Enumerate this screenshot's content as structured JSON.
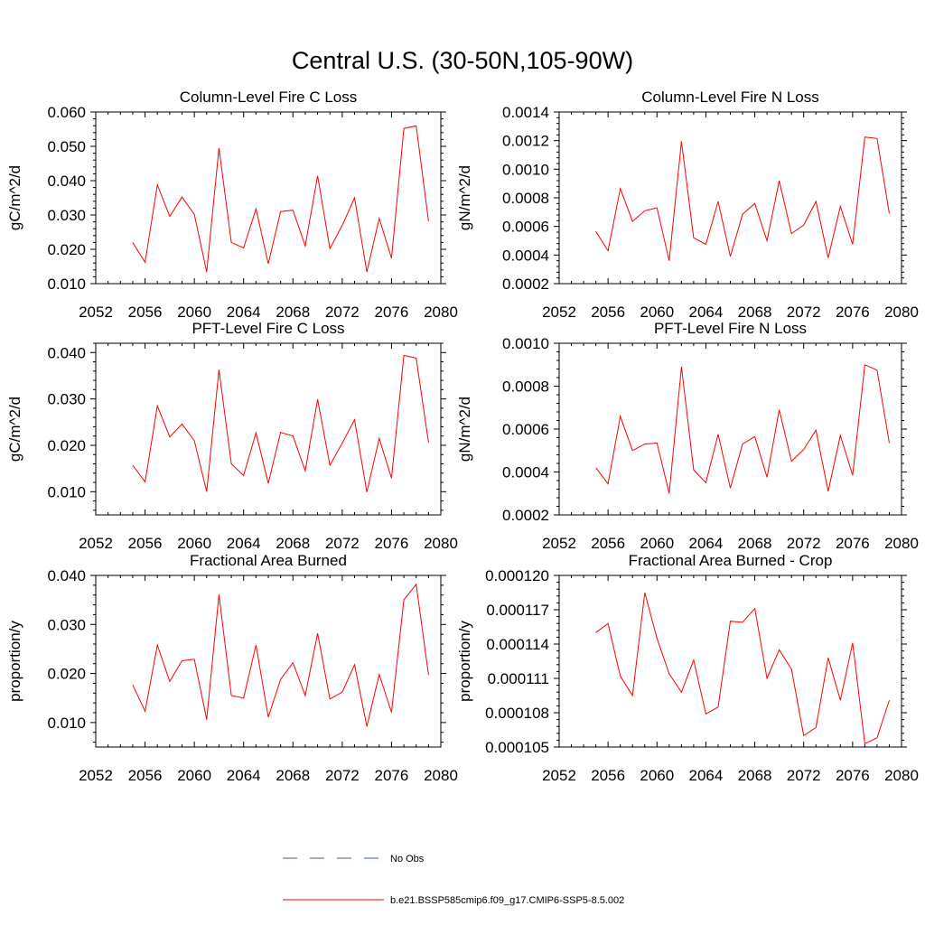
{
  "figure": {
    "title": "Central U.S. (30-50N,105-90W)"
  },
  "legend": {
    "placement": "bottom",
    "entries": [
      {
        "label": "No Obs",
        "color": "#3b4fd8",
        "style": "dashed"
      },
      {
        "label": "b.e21.BSSP585cmip6.f09_g17.CMIP6-SSP5-8.5.002",
        "color": "#ff0000",
        "style": "solid"
      }
    ]
  },
  "chart_data": [
    {
      "type": "line",
      "title": "Column-Level Fire C Loss",
      "ylabel": "gC/m^2/d",
      "xlim": [
        2052,
        2080
      ],
      "ylim": [
        0.01,
        0.06
      ],
      "xticks": [
        "2052",
        "2056",
        "2060",
        "2064",
        "2068",
        "2072",
        "2076",
        "2080"
      ],
      "yticks": [
        "0.010",
        "0.020",
        "0.030",
        "0.040",
        "0.050",
        "0.060"
      ],
      "x": [
        2055,
        2056,
        2057,
        2058,
        2059,
        2060,
        2061,
        2062,
        2063,
        2064,
        2065,
        2066,
        2067,
        2068,
        2069,
        2070,
        2071,
        2072,
        2073,
        2074,
        2075,
        2076,
        2077,
        2078,
        2079
      ],
      "series": [
        {
          "color": "#ff0000",
          "values": [
            0.022,
            0.0162,
            0.0388,
            0.0296,
            0.0352,
            0.0302,
            0.0134,
            0.0495,
            0.022,
            0.0204,
            0.0318,
            0.0158,
            0.031,
            0.0314,
            0.021,
            0.0414,
            0.0202,
            0.027,
            0.035,
            0.0134,
            0.029,
            0.0174,
            0.0552,
            0.056,
            0.0282
          ]
        }
      ]
    },
    {
      "type": "line",
      "title": "Column-Level Fire N Loss",
      "ylabel": "gN/m^2/d",
      "xlim": [
        2052,
        2080
      ],
      "ylim": [
        0.0002,
        0.0014
      ],
      "xticks": [
        "2052",
        "2056",
        "2060",
        "2064",
        "2068",
        "2072",
        "2076",
        "2080"
      ],
      "yticks": [
        "0.0002",
        "0.0004",
        "0.0006",
        "0.0008",
        "0.0010",
        "0.0012",
        "0.0014"
      ],
      "x": [
        2055,
        2056,
        2057,
        2058,
        2059,
        2060,
        2061,
        2062,
        2063,
        2064,
        2065,
        2066,
        2067,
        2068,
        2069,
        2070,
        2071,
        2072,
        2073,
        2074,
        2075,
        2076,
        2077,
        2078,
        2079
      ],
      "series": [
        {
          "color": "#ff0000",
          "values": [
            0.000565,
            0.00043,
            0.000865,
            0.000635,
            0.00071,
            0.00073,
            0.00036,
            0.001195,
            0.00052,
            0.000475,
            0.000775,
            0.00039,
            0.000685,
            0.00076,
            0.0005,
            0.00092,
            0.00055,
            0.00061,
            0.000775,
            0.00038,
            0.00074,
            0.000475,
            0.001225,
            0.001215,
            0.00069
          ]
        }
      ]
    },
    {
      "type": "line",
      "title": "PFT-Level Fire C Loss",
      "ylabel": "gC/m^2/d",
      "xlim": [
        2052,
        2080
      ],
      "ylim": [
        0.005,
        0.042
      ],
      "xticks": [
        "2052",
        "2056",
        "2060",
        "2064",
        "2068",
        "2072",
        "2076",
        "2080"
      ],
      "yticks": [
        "0.010",
        "0.020",
        "0.030",
        "0.040"
      ],
      "x": [
        2055,
        2056,
        2057,
        2058,
        2059,
        2060,
        2061,
        2062,
        2063,
        2064,
        2065,
        2066,
        2067,
        2068,
        2069,
        2070,
        2071,
        2072,
        2073,
        2074,
        2075,
        2076,
        2077,
        2078,
        2079
      ],
      "series": [
        {
          "color": "#ff0000",
          "values": [
            0.0157,
            0.0121,
            0.0285,
            0.0218,
            0.0246,
            0.021,
            0.01,
            0.0363,
            0.016,
            0.0135,
            0.0227,
            0.0118,
            0.0228,
            0.022,
            0.0145,
            0.0299,
            0.0157,
            0.0205,
            0.0255,
            0.0099,
            0.0215,
            0.0129,
            0.0394,
            0.0388,
            0.0206
          ]
        }
      ]
    },
    {
      "type": "line",
      "title": "PFT-Level Fire N Loss",
      "ylabel": "gN/m^2/d",
      "xlim": [
        2052,
        2080
      ],
      "ylim": [
        0.0002,
        0.001
      ],
      "xticks": [
        "2052",
        "2056",
        "2060",
        "2064",
        "2068",
        "2072",
        "2076",
        "2080"
      ],
      "yticks": [
        "0.0002",
        "0.0004",
        "0.0006",
        "0.0008",
        "0.0010"
      ],
      "x": [
        2055,
        2056,
        2057,
        2058,
        2059,
        2060,
        2061,
        2062,
        2063,
        2064,
        2065,
        2066,
        2067,
        2068,
        2069,
        2070,
        2071,
        2072,
        2073,
        2074,
        2075,
        2076,
        2077,
        2078,
        2079
      ],
      "series": [
        {
          "color": "#ff0000",
          "values": [
            0.00042,
            0.000345,
            0.00066,
            0.0005,
            0.00053,
            0.000535,
            0.0003,
            0.00089,
            0.00041,
            0.00035,
            0.000575,
            0.000325,
            0.00053,
            0.000565,
            0.000375,
            0.00069,
            0.00045,
            0.000505,
            0.000595,
            0.00031,
            0.00057,
            0.000385,
            0.0009,
            0.000875,
            0.000535
          ]
        }
      ]
    },
    {
      "type": "line",
      "title": "Fractional Area Burned",
      "ylabel": "proportion/y",
      "xlim": [
        2052,
        2080
      ],
      "ylim": [
        0.005,
        0.04
      ],
      "xticks": [
        "2052",
        "2056",
        "2060",
        "2064",
        "2068",
        "2072",
        "2076",
        "2080"
      ],
      "yticks": [
        "0.010",
        "0.020",
        "0.030",
        "0.040"
      ],
      "x": [
        2055,
        2056,
        2057,
        2058,
        2059,
        2060,
        2061,
        2062,
        2063,
        2064,
        2065,
        2066,
        2067,
        2068,
        2069,
        2070,
        2071,
        2072,
        2073,
        2074,
        2075,
        2076,
        2077,
        2078,
        2079
      ],
      "series": [
        {
          "color": "#ff0000",
          "values": [
            0.0177,
            0.0123,
            0.0258,
            0.0184,
            0.0226,
            0.0229,
            0.0106,
            0.0361,
            0.0155,
            0.015,
            0.0258,
            0.0111,
            0.0188,
            0.0222,
            0.0155,
            0.0282,
            0.0148,
            0.0162,
            0.0218,
            0.0092,
            0.0198,
            0.0121,
            0.035,
            0.0382,
            0.0197
          ]
        }
      ]
    },
    {
      "type": "line",
      "title": "Fractional Area Burned - Crop",
      "ylabel": "proportion/y",
      "xlim": [
        2052,
        2080
      ],
      "ylim": [
        0.000105,
        0.00012
      ],
      "xticks": [
        "2052",
        "2056",
        "2060",
        "2064",
        "2068",
        "2072",
        "2076",
        "2080"
      ],
      "yticks": [
        "0.000105",
        "0.000108",
        "0.000111",
        "0.000114",
        "0.000117",
        "0.000120"
      ],
      "x": [
        2055,
        2056,
        2057,
        2058,
        2059,
        2060,
        2061,
        2062,
        2063,
        2064,
        2065,
        2066,
        2067,
        2068,
        2069,
        2070,
        2071,
        2072,
        2073,
        2074,
        2075,
        2076,
        2077,
        2078,
        2079
      ],
      "series": [
        {
          "color": "#ff0000",
          "values": [
            0.000115,
            0.0001158,
            0.0001112,
            0.0001095,
            0.0001185,
            0.0001145,
            0.0001114,
            0.0001098,
            0.0001126,
            0.0001079,
            0.0001085,
            0.000116,
            0.0001159,
            0.0001171,
            0.000111,
            0.0001135,
            0.0001118,
            0.000106,
            0.0001067,
            0.0001128,
            0.0001091,
            0.0001141,
            0.0001053,
            0.0001058,
            0.0001091
          ]
        }
      ]
    }
  ]
}
